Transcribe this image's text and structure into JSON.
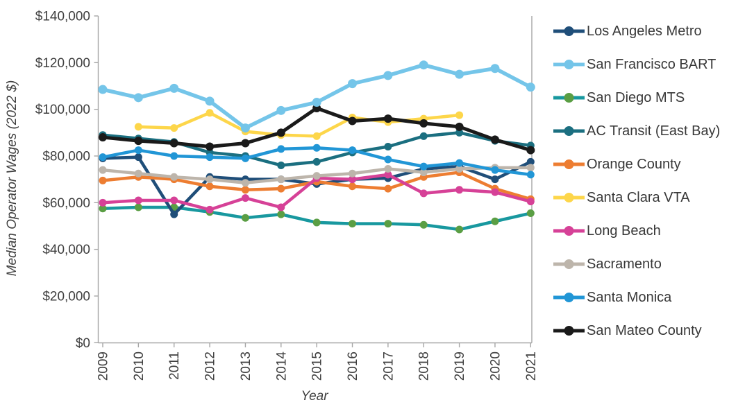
{
  "chart_data": {
    "type": "line",
    "title": "",
    "xlabel": "Year",
    "ylabel": "Median Operator Wages (2022 $)",
    "x": [
      2009,
      2010,
      2011,
      2012,
      2013,
      2014,
      2015,
      2016,
      2017,
      2018,
      2019,
      2020,
      2021
    ],
    "xtick_labels": [
      "2009",
      "2010",
      "2011",
      "2012",
      "2013",
      "2014",
      "2015",
      "2016",
      "2017",
      "2018",
      "2019",
      "2020",
      "2021"
    ],
    "ylim": [
      0,
      140000
    ],
    "ytick_step": 20000,
    "ytick_labels": [
      "$0",
      "$20,000",
      "$40,000",
      "$60,000",
      "$80,000",
      "$100,000",
      "$120,000",
      "$140,000"
    ],
    "grid": false,
    "legend_position": "right",
    "axis_color": "#a6a6a6",
    "text_color": "#3f3f3f",
    "series": [
      {
        "name": "Los Angeles Metro",
        "color": "#1f4e79",
        "values": [
          79000,
          79500,
          55000,
          71000,
          70000,
          70000,
          68000,
          70000,
          70500,
          74500,
          75500,
          70000,
          77500
        ]
      },
      {
        "name": "San Francisco BART",
        "color": "#74c5e9",
        "line_width": 5.5,
        "marker_r": 6.5,
        "values": [
          108500,
          105000,
          109000,
          103500,
          92000,
          99500,
          103000,
          111000,
          114500,
          119000,
          115000,
          117500,
          109500
        ]
      },
      {
        "name": "San Diego MTS",
        "color": "#18989f",
        "marker_color": "#5a9e44",
        "values": [
          57500,
          58000,
          58000,
          56000,
          53500,
          55000,
          51500,
          51000,
          51000,
          50500,
          48500,
          52000,
          55500
        ]
      },
      {
        "name": "AC Transit (East Bay)",
        "color": "#1b6f80",
        "values": [
          89000,
          87500,
          86000,
          81500,
          80000,
          76000,
          77500,
          81500,
          84000,
          88500,
          90000,
          86500,
          84500
        ]
      },
      {
        "name": "Orange County",
        "color": "#ed7d31",
        "values": [
          69500,
          71000,
          70000,
          67000,
          65500,
          66000,
          69000,
          67000,
          66000,
          71000,
          73000,
          66000,
          61500
        ]
      },
      {
        "name": "Santa Clara VTA",
        "color": "#fdd64a",
        "values": [
          null,
          92500,
          92000,
          98500,
          90500,
          89000,
          88500,
          96500,
          94500,
          96000,
          97500,
          null,
          null
        ]
      },
      {
        "name": "Long Beach",
        "color": "#d64197",
        "values": [
          60000,
          61000,
          61000,
          57000,
          62000,
          58000,
          70500,
          70000,
          72000,
          64000,
          65500,
          64500,
          60500
        ]
      },
      {
        "name": "Sacramento",
        "color": "#bdb5ab",
        "values": [
          74000,
          72500,
          71000,
          70000,
          68500,
          70000,
          71500,
          72500,
          74500,
          73000,
          74500,
          75000,
          75000
        ]
      },
      {
        "name": "Santa Monica",
        "color": "#2196d6",
        "values": [
          79500,
          82500,
          80000,
          79500,
          79000,
          83000,
          83500,
          82500,
          78500,
          75500,
          77000,
          74000,
          72000
        ]
      },
      {
        "name": "San Mateo County",
        "color": "#1a1a1a",
        "line_width": 5,
        "marker_r": 6,
        "values": [
          88000,
          86500,
          85500,
          84000,
          85500,
          90000,
          100500,
          95000,
          96000,
          94000,
          92500,
          87000,
          82500
        ]
      }
    ],
    "draw_order": [
      5,
      2,
      0,
      4,
      6,
      7,
      3,
      8,
      9,
      1
    ]
  }
}
